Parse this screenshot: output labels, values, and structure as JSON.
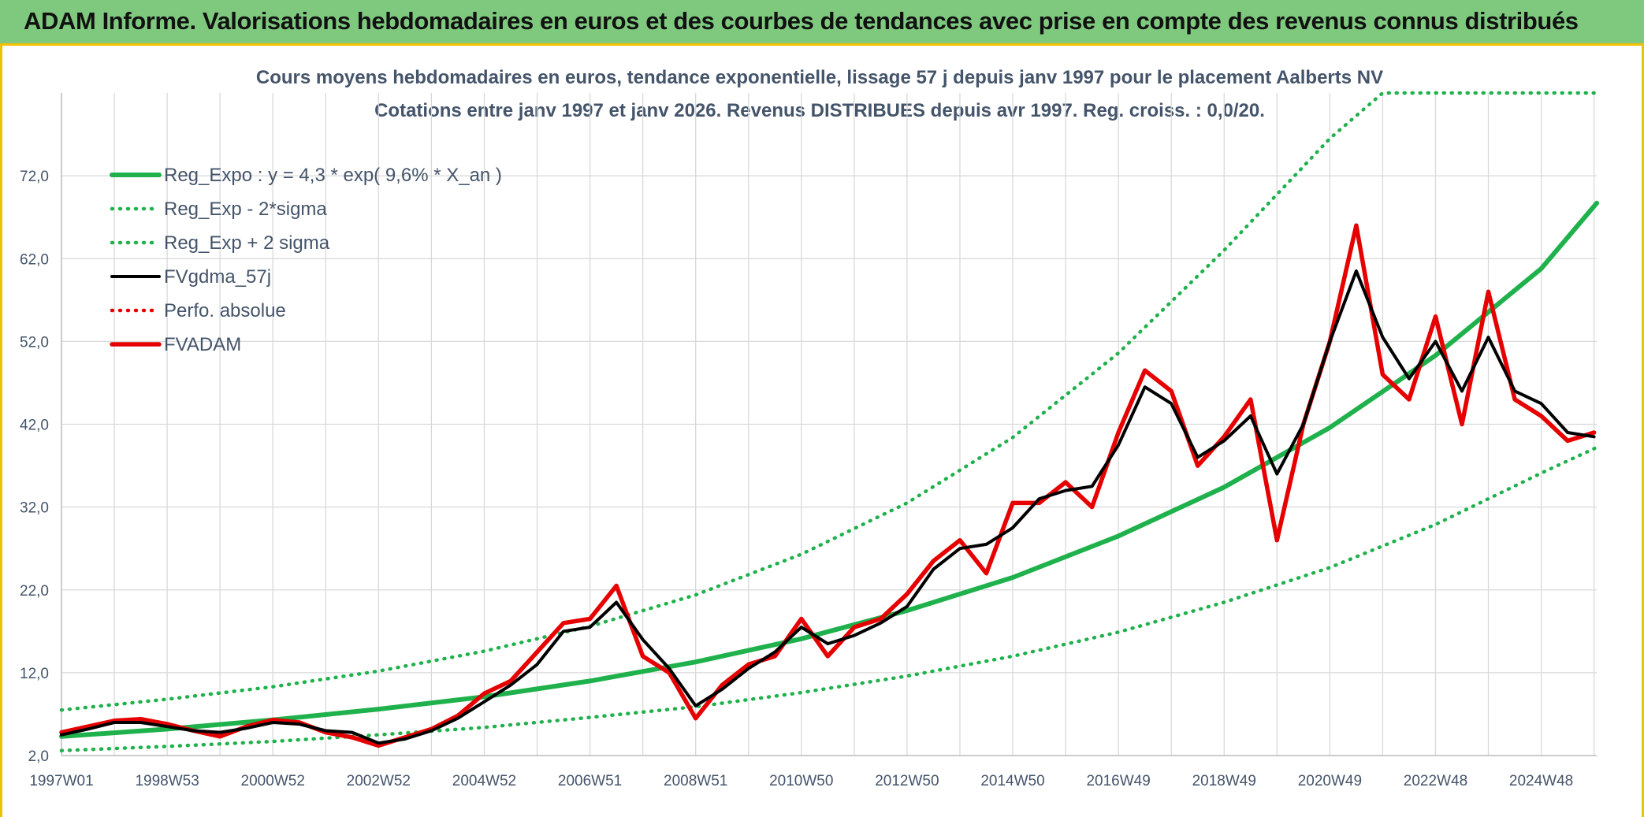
{
  "header": {
    "title": "ADAM Informe. Valorisations hebdomadaires en euros et des courbes de tendances avec prise en compte des revenus connus distribués"
  },
  "chart_data": {
    "type": "line",
    "title": "Cours moyens hebdomadaires en euros, tendance exponentielle, lissage 57 j depuis janv 1997 pour le placement Aalberts NV",
    "subtitle": "Cotations entre janv 1997 et janv 2026. Revenus DISTRIBUES depuis avr 1997. Reg. croiss. : 0,0/20.",
    "xlabel": "",
    "ylabel": "",
    "x_range": [
      1997.0,
      2026.05
    ],
    "ylim": [
      2.0,
      82.0
    ],
    "y_ticks": [
      "2,0",
      "12,0",
      "22,0",
      "32,0",
      "42,0",
      "52,0",
      "62,0",
      "72,0"
    ],
    "x_tick_labels": [
      {
        "label": "1997W01",
        "x": 1997.0
      },
      {
        "label": "1998W53",
        "x": 1999.0
      },
      {
        "label": "2000W52",
        "x": 2001.0
      },
      {
        "label": "2002W52",
        "x": 2003.0
      },
      {
        "label": "2004W52",
        "x": 2005.0
      },
      {
        "label": "2006W51",
        "x": 2007.0
      },
      {
        "label": "2008W51",
        "x": 2009.0
      },
      {
        "label": "2010W50",
        "x": 2011.0
      },
      {
        "label": "2012W50",
        "x": 2013.0
      },
      {
        "label": "2014W50",
        "x": 2015.0
      },
      {
        "label": "2016W49",
        "x": 2017.0
      },
      {
        "label": "2018W49",
        "x": 2019.0
      },
      {
        "label": "2020W49",
        "x": 2021.0
      },
      {
        "label": "2022W48",
        "x": 2023.0
      },
      {
        "label": "2024W48",
        "x": 2025.0
      }
    ],
    "grid": true,
    "legend_position": "top-left",
    "colors": {
      "green": "#1fb14c",
      "black": "#000000",
      "red": "#e60000",
      "grid": "#d9d9d9",
      "text": "#44546a"
    },
    "series": [
      {
        "name": "Reg_Expo : y = 4,3 * exp( 9,6% *  X_an )",
        "style": "solid",
        "color": "#1fb14c",
        "x": [
          1997.0,
          1999.0,
          2001.0,
          2003.0,
          2005.0,
          2007.0,
          2009.0,
          2011.0,
          2013.0,
          2015.0,
          2017.0,
          2019.0,
          2021.0,
          2023.0,
          2025.0,
          2026.05
        ],
        "values": [
          4.3,
          5.2,
          6.3,
          7.6,
          9.1,
          11.0,
          13.3,
          16.1,
          19.5,
          23.5,
          28.5,
          34.4,
          41.6,
          50.3,
          60.8,
          68.7
        ]
      },
      {
        "name": "Reg_Exp - 2*sigma",
        "style": "dotted",
        "color": "#1fb14c",
        "x": [
          1997.0,
          1999.0,
          2001.0,
          2003.0,
          2005.0,
          2007.0,
          2009.0,
          2011.0,
          2013.0,
          2015.0,
          2017.0,
          2019.0,
          2021.0,
          2023.0,
          2025.0,
          2026.05
        ],
        "values": [
          2.6,
          3.1,
          3.7,
          4.5,
          5.4,
          6.6,
          7.9,
          9.6,
          11.6,
          14.0,
          16.9,
          20.5,
          24.7,
          29.9,
          36.1,
          39.2
        ]
      },
      {
        "name": "Reg_Exp + 2 sigma",
        "style": "dotted",
        "color": "#1fb14c",
        "x": [
          1997.0,
          1999.0,
          2001.0,
          2003.0,
          2005.0,
          2007.0,
          2009.0,
          2011.0,
          2013.0,
          2015.0,
          2017.0,
          2019.0,
          2021.0,
          2022.0,
          2026.0
        ],
        "values": [
          7.5,
          8.8,
          10.3,
          12.2,
          14.6,
          17.6,
          21.4,
          26.3,
          32.5,
          40.4,
          50.6,
          63.0,
          76.5,
          82.0,
          82.0
        ]
      },
      {
        "name": "FVgdma_57j",
        "style": "solid",
        "color": "#000000",
        "x": [
          1997.0,
          1997.5,
          1998.0,
          1998.5,
          1999.0,
          1999.5,
          2000.0,
          2000.5,
          2001.0,
          2001.5,
          2002.0,
          2002.5,
          2003.0,
          2003.5,
          2004.0,
          2004.5,
          2005.0,
          2005.5,
          2006.0,
          2006.5,
          2007.0,
          2007.5,
          2008.0,
          2008.5,
          2009.0,
          2009.5,
          2010.0,
          2010.5,
          2011.0,
          2011.5,
          2012.0,
          2012.5,
          2013.0,
          2013.5,
          2014.0,
          2014.5,
          2015.0,
          2015.5,
          2016.0,
          2016.5,
          2017.0,
          2017.5,
          2018.0,
          2018.5,
          2019.0,
          2019.5,
          2020.0,
          2020.5,
          2021.0,
          2021.5,
          2022.0,
          2022.5,
          2023.0,
          2023.5,
          2024.0,
          2024.5,
          2025.0,
          2025.5,
          2026.0
        ],
        "values": [
          4.5,
          5.2,
          6.0,
          6.0,
          5.5,
          5.0,
          4.8,
          5.3,
          6.0,
          5.8,
          5.0,
          4.8,
          3.5,
          4.0,
          5.0,
          6.5,
          8.5,
          10.5,
          13.0,
          17.0,
          17.5,
          20.5,
          16.0,
          12.5,
          8.0,
          10.0,
          12.5,
          14.5,
          17.5,
          15.5,
          16.5,
          18.0,
          20.0,
          24.5,
          27.0,
          27.5,
          29.5,
          33.0,
          34.0,
          34.5,
          39.5,
          46.5,
          44.5,
          38.0,
          40.0,
          43.0,
          36.0,
          42.0,
          52.0,
          60.5,
          52.5,
          47.5,
          52.0,
          46.0,
          52.5,
          46.0,
          44.5,
          41.0,
          40.5
        ]
      },
      {
        "name": "Perfo. absolue",
        "style": "dotted",
        "color": "#e60000",
        "x": [],
        "values": []
      },
      {
        "name": "FVADAM",
        "style": "solid",
        "color": "#e60000",
        "x": [
          1997.0,
          1997.5,
          1998.0,
          1998.5,
          1999.0,
          1999.5,
          2000.0,
          2000.5,
          2001.0,
          2001.5,
          2002.0,
          2002.5,
          2003.0,
          2003.5,
          2004.0,
          2004.5,
          2005.0,
          2005.5,
          2006.0,
          2006.5,
          2007.0,
          2007.5,
          2008.0,
          2008.5,
          2009.0,
          2009.5,
          2010.0,
          2010.5,
          2011.0,
          2011.5,
          2012.0,
          2012.5,
          2013.0,
          2013.5,
          2014.0,
          2014.5,
          2015.0,
          2015.5,
          2016.0,
          2016.5,
          2017.0,
          2017.5,
          2018.0,
          2018.5,
          2019.0,
          2019.5,
          2020.0,
          2020.5,
          2021.0,
          2021.5,
          2022.0,
          2022.5,
          2023.0,
          2023.5,
          2024.0,
          2024.5,
          2025.0,
          2025.5,
          2026.0
        ],
        "values": [
          4.8,
          5.5,
          6.2,
          6.4,
          5.8,
          5.0,
          4.3,
          5.5,
          6.3,
          6.0,
          4.8,
          4.2,
          3.2,
          4.2,
          5.2,
          6.8,
          9.5,
          11.0,
          14.5,
          18.0,
          18.5,
          22.5,
          14.0,
          12.0,
          6.5,
          10.5,
          13.0,
          14.0,
          18.5,
          14.0,
          17.5,
          18.5,
          21.5,
          25.5,
          28.0,
          24.0,
          32.5,
          32.5,
          35.0,
          32.0,
          41.0,
          48.5,
          46.0,
          37.0,
          40.5,
          45.0,
          28.0,
          42.0,
          52.0,
          66.0,
          48.0,
          45.0,
          55.0,
          42.0,
          58.0,
          45.0,
          43.0,
          40.0,
          41.0
        ]
      }
    ]
  }
}
